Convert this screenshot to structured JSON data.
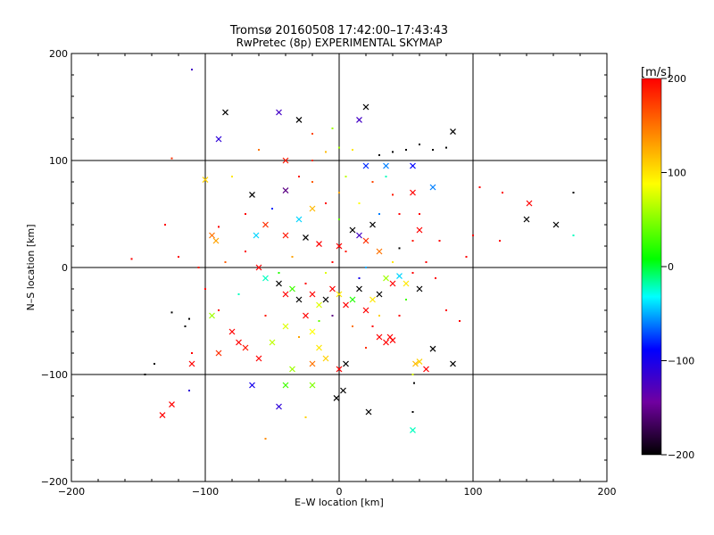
{
  "chart_data": {
    "type": "scatter",
    "title": "Tromsø 20160508 17:42:00–17:43:43",
    "subtitle": "RwPretec (8p) EXPERIMENTAL SKYMAP",
    "xlabel": "E–W location [km]",
    "ylabel": "N–S location [km]",
    "xlim": [
      -200,
      200
    ],
    "ylim": [
      -200,
      200
    ],
    "x_ticks": [
      "−200",
      "−100",
      "0",
      "100",
      "200"
    ],
    "y_ticks": [
      "−200",
      "−100",
      "0",
      "100",
      "200"
    ],
    "x_tick_values": [
      -200,
      -100,
      0,
      100,
      200
    ],
    "y_tick_values": [
      -200,
      -100,
      0,
      100,
      200
    ],
    "grid": "lines at ±100 and 0",
    "colorbar": {
      "label": "[m/s]",
      "range": [
        -200,
        200
      ],
      "tick_values": [
        200,
        100,
        0,
        -100,
        -200
      ],
      "tick_labels": [
        "200",
        "100",
        "0",
        "−100",
        "−200"
      ],
      "colormap": [
        "#000000",
        "#7000a0",
        "#0000ff",
        "#00ffff",
        "#00ff00",
        "#ffff00",
        "#ff8000",
        "#ff0000"
      ]
    },
    "marker_legend": {
      "cross": "x marker",
      "dot": "small dot"
    },
    "points": [
      {
        "x": -110,
        "y": 185,
        "v": -120,
        "m": "dot"
      },
      {
        "x": -45,
        "y": 145,
        "v": -120,
        "m": "cross"
      },
      {
        "x": -30,
        "y": 138,
        "v": -200,
        "m": "cross"
      },
      {
        "x": -85,
        "y": 145,
        "v": -200,
        "m": "cross"
      },
      {
        "x": -90,
        "y": 120,
        "v": -110,
        "m": "cross"
      },
      {
        "x": 20,
        "y": 150,
        "v": -200,
        "m": "cross"
      },
      {
        "x": 15,
        "y": 138,
        "v": -120,
        "m": "cross"
      },
      {
        "x": 85,
        "y": 127,
        "v": -200,
        "m": "cross"
      },
      {
        "x": 60,
        "y": 115,
        "v": -200,
        "m": "dot"
      },
      {
        "x": 70,
        "y": 110,
        "v": -200,
        "m": "dot"
      },
      {
        "x": 50,
        "y": 110,
        "v": -200,
        "m": "dot"
      },
      {
        "x": 40,
        "y": 108,
        "v": -200,
        "m": "dot"
      },
      {
        "x": 30,
        "y": 105,
        "v": -200,
        "m": "dot"
      },
      {
        "x": 80,
        "y": 112,
        "v": -200,
        "m": "dot"
      },
      {
        "x": 10,
        "y": 110,
        "v": 100,
        "m": "dot"
      },
      {
        "x": 0,
        "y": 112,
        "v": 60,
        "m": "dot"
      },
      {
        "x": -10,
        "y": 108,
        "v": 120,
        "m": "dot"
      },
      {
        "x": -20,
        "y": 100,
        "v": 180,
        "m": "dot"
      },
      {
        "x": -40,
        "y": 100,
        "v": 190,
        "m": "cross"
      },
      {
        "x": 20,
        "y": 95,
        "v": -80,
        "m": "cross"
      },
      {
        "x": 35,
        "y": 95,
        "v": -60,
        "m": "cross"
      },
      {
        "x": 55,
        "y": 95,
        "v": -90,
        "m": "cross"
      },
      {
        "x": 70,
        "y": 75,
        "v": -60,
        "m": "cross"
      },
      {
        "x": 55,
        "y": 70,
        "v": 200,
        "m": "cross"
      },
      {
        "x": 40,
        "y": 68,
        "v": 190,
        "m": "dot"
      },
      {
        "x": -65,
        "y": 68,
        "v": -200,
        "m": "cross"
      },
      {
        "x": -125,
        "y": 102,
        "v": 180,
        "m": "dot"
      },
      {
        "x": -100,
        "y": 82,
        "v": 110,
        "m": "cross"
      },
      {
        "x": -40,
        "y": 72,
        "v": -150,
        "m": "cross"
      },
      {
        "x": -20,
        "y": 55,
        "v": 120,
        "m": "cross"
      },
      {
        "x": -30,
        "y": 45,
        "v": -40,
        "m": "cross"
      },
      {
        "x": -55,
        "y": 40,
        "v": 180,
        "m": "cross"
      },
      {
        "x": -90,
        "y": 38,
        "v": 200,
        "m": "dot"
      },
      {
        "x": -95,
        "y": 30,
        "v": 150,
        "m": "cross"
      },
      {
        "x": -92,
        "y": 25,
        "v": 130,
        "m": "cross"
      },
      {
        "x": -62,
        "y": 30,
        "v": -40,
        "m": "cross"
      },
      {
        "x": -40,
        "y": 30,
        "v": 190,
        "m": "cross"
      },
      {
        "x": -25,
        "y": 28,
        "v": -200,
        "m": "cross"
      },
      {
        "x": -15,
        "y": 22,
        "v": 200,
        "m": "cross"
      },
      {
        "x": 0,
        "y": 20,
        "v": 200,
        "m": "cross"
      },
      {
        "x": 10,
        "y": 35,
        "v": -200,
        "m": "cross"
      },
      {
        "x": 15,
        "y": 30,
        "v": -120,
        "m": "cross"
      },
      {
        "x": 20,
        "y": 25,
        "v": 180,
        "m": "cross"
      },
      {
        "x": 25,
        "y": 40,
        "v": -200,
        "m": "cross"
      },
      {
        "x": 30,
        "y": 15,
        "v": 150,
        "m": "cross"
      },
      {
        "x": 45,
        "y": 18,
        "v": -200,
        "m": "dot"
      },
      {
        "x": 55,
        "y": 25,
        "v": 190,
        "m": "dot"
      },
      {
        "x": 60,
        "y": 35,
        "v": 200,
        "m": "cross"
      },
      {
        "x": 75,
        "y": 25,
        "v": 200,
        "m": "dot"
      },
      {
        "x": 100,
        "y": 30,
        "v": 200,
        "m": "dot"
      },
      {
        "x": 120,
        "y": 25,
        "v": 200,
        "m": "dot"
      },
      {
        "x": 140,
        "y": 45,
        "v": -200,
        "m": "cross"
      },
      {
        "x": 142,
        "y": 60,
        "v": 200,
        "m": "cross"
      },
      {
        "x": 162,
        "y": 40,
        "v": -200,
        "m": "cross"
      },
      {
        "x": 175,
        "y": 70,
        "v": -200,
        "m": "dot"
      },
      {
        "x": 175,
        "y": 30,
        "v": -20,
        "m": "dot"
      },
      {
        "x": 122,
        "y": 70,
        "v": 200,
        "m": "dot"
      },
      {
        "x": 105,
        "y": 75,
        "v": 200,
        "m": "dot"
      },
      {
        "x": -155,
        "y": 8,
        "v": 200,
        "m": "dot"
      },
      {
        "x": -120,
        "y": 10,
        "v": 200,
        "m": "dot"
      },
      {
        "x": -105,
        "y": 0,
        "v": 190,
        "m": "dot"
      },
      {
        "x": -60,
        "y": 0,
        "v": 200,
        "m": "cross"
      },
      {
        "x": -55,
        "y": -10,
        "v": -20,
        "m": "cross"
      },
      {
        "x": -45,
        "y": -15,
        "v": -200,
        "m": "cross"
      },
      {
        "x": -40,
        "y": -25,
        "v": 200,
        "m": "cross"
      },
      {
        "x": -35,
        "y": -20,
        "v": 30,
        "m": "cross"
      },
      {
        "x": -30,
        "y": -30,
        "v": -200,
        "m": "cross"
      },
      {
        "x": -20,
        "y": -25,
        "v": 200,
        "m": "cross"
      },
      {
        "x": -15,
        "y": -35,
        "v": 80,
        "m": "cross"
      },
      {
        "x": -10,
        "y": -30,
        "v": -200,
        "m": "cross"
      },
      {
        "x": -5,
        "y": -20,
        "v": 200,
        "m": "cross"
      },
      {
        "x": 0,
        "y": -25,
        "v": 100,
        "m": "cross"
      },
      {
        "x": 5,
        "y": -35,
        "v": 200,
        "m": "cross"
      },
      {
        "x": 10,
        "y": -30,
        "v": 20,
        "m": "cross"
      },
      {
        "x": 15,
        "y": -20,
        "v": -200,
        "m": "cross"
      },
      {
        "x": 20,
        "y": -40,
        "v": 200,
        "m": "cross"
      },
      {
        "x": 25,
        "y": -30,
        "v": 100,
        "m": "cross"
      },
      {
        "x": 30,
        "y": -25,
        "v": -200,
        "m": "cross"
      },
      {
        "x": 35,
        "y": -10,
        "v": 60,
        "m": "cross"
      },
      {
        "x": 40,
        "y": -15,
        "v": 200,
        "m": "cross"
      },
      {
        "x": 45,
        "y": -8,
        "v": -40,
        "m": "cross"
      },
      {
        "x": 50,
        "y": -15,
        "v": 100,
        "m": "cross"
      },
      {
        "x": 55,
        "y": -5,
        "v": 200,
        "m": "dot"
      },
      {
        "x": 60,
        "y": -20,
        "v": -200,
        "m": "cross"
      },
      {
        "x": 72,
        "y": -10,
        "v": 200,
        "m": "dot"
      },
      {
        "x": 80,
        "y": -40,
        "v": 200,
        "m": "dot"
      },
      {
        "x": -100,
        "y": -20,
        "v": 200,
        "m": "dot"
      },
      {
        "x": -90,
        "y": -40,
        "v": 200,
        "m": "dot"
      },
      {
        "x": -95,
        "y": -45,
        "v": 60,
        "m": "cross"
      },
      {
        "x": -80,
        "y": -60,
        "v": 200,
        "m": "cross"
      },
      {
        "x": -75,
        "y": -70,
        "v": 200,
        "m": "cross"
      },
      {
        "x": -70,
        "y": -75,
        "v": 190,
        "m": "cross"
      },
      {
        "x": -90,
        "y": -80,
        "v": 180,
        "m": "cross"
      },
      {
        "x": -110,
        "y": -90,
        "v": 200,
        "m": "cross"
      },
      {
        "x": -60,
        "y": -85,
        "v": 200,
        "m": "cross"
      },
      {
        "x": -50,
        "y": -70,
        "v": 70,
        "m": "cross"
      },
      {
        "x": -40,
        "y": -55,
        "v": 80,
        "m": "cross"
      },
      {
        "x": -25,
        "y": -45,
        "v": 200,
        "m": "cross"
      },
      {
        "x": -20,
        "y": -60,
        "v": 90,
        "m": "cross"
      },
      {
        "x": -15,
        "y": -75,
        "v": 100,
        "m": "cross"
      },
      {
        "x": -10,
        "y": -85,
        "v": 110,
        "m": "cross"
      },
      {
        "x": -20,
        "y": -90,
        "v": 150,
        "m": "cross"
      },
      {
        "x": -35,
        "y": -95,
        "v": 60,
        "m": "cross"
      },
      {
        "x": -40,
        "y": -110,
        "v": 30,
        "m": "cross"
      },
      {
        "x": -20,
        "y": -110,
        "v": 50,
        "m": "cross"
      },
      {
        "x": 0,
        "y": -95,
        "v": 200,
        "m": "cross"
      },
      {
        "x": 5,
        "y": -90,
        "v": -200,
        "m": "cross"
      },
      {
        "x": 30,
        "y": -65,
        "v": 200,
        "m": "cross"
      },
      {
        "x": 38,
        "y": -65,
        "v": 200,
        "m": "cross"
      },
      {
        "x": 40,
        "y": -68,
        "v": 200,
        "m": "cross"
      },
      {
        "x": 35,
        "y": -70,
        "v": 200,
        "m": "cross"
      },
      {
        "x": 57,
        "y": -90,
        "v": 120,
        "m": "cross"
      },
      {
        "x": 60,
        "y": -88,
        "v": 110,
        "m": "cross"
      },
      {
        "x": 65,
        "y": -95,
        "v": 200,
        "m": "cross"
      },
      {
        "x": 70,
        "y": -76,
        "v": -200,
        "m": "cross"
      },
      {
        "x": 85,
        "y": -90,
        "v": -200,
        "m": "cross"
      },
      {
        "x": 90,
        "y": -50,
        "v": 200,
        "m": "dot"
      },
      {
        "x": 55,
        "y": -100,
        "v": 80,
        "m": "dot"
      },
      {
        "x": 56,
        "y": -108,
        "v": -200,
        "m": "dot"
      },
      {
        "x": -145,
        "y": -100,
        "v": -200,
        "m": "dot"
      },
      {
        "x": -125,
        "y": -128,
        "v": 200,
        "m": "cross"
      },
      {
        "x": -132,
        "y": -138,
        "v": 200,
        "m": "cross"
      },
      {
        "x": -112,
        "y": -115,
        "v": -110,
        "m": "dot"
      },
      {
        "x": -138,
        "y": -90,
        "v": -200,
        "m": "dot"
      },
      {
        "x": -112,
        "y": -48,
        "v": -200,
        "m": "dot"
      },
      {
        "x": -115,
        "y": -55,
        "v": -200,
        "m": "dot"
      },
      {
        "x": -125,
        "y": -42,
        "v": -200,
        "m": "dot"
      },
      {
        "x": -65,
        "y": -110,
        "v": -100,
        "m": "cross"
      },
      {
        "x": -45,
        "y": -130,
        "v": -110,
        "m": "cross"
      },
      {
        "x": -25,
        "y": -140,
        "v": 110,
        "m": "dot"
      },
      {
        "x": -55,
        "y": -160,
        "v": 140,
        "m": "dot"
      },
      {
        "x": -2,
        "y": -122,
        "v": -200,
        "m": "cross"
      },
      {
        "x": 3,
        "y": -115,
        "v": -200,
        "m": "cross"
      },
      {
        "x": 22,
        "y": -135,
        "v": -200,
        "m": "cross"
      },
      {
        "x": 55,
        "y": -152,
        "v": -20,
        "m": "cross"
      },
      {
        "x": 55,
        "y": -135,
        "v": -200,
        "m": "dot"
      },
      {
        "x": -110,
        "y": -80,
        "v": 200,
        "m": "dot"
      },
      {
        "x": -20,
        "y": 80,
        "v": 160,
        "m": "dot"
      },
      {
        "x": 0,
        "y": 70,
        "v": 130,
        "m": "dot"
      },
      {
        "x": 15,
        "y": 60,
        "v": 90,
        "m": "dot"
      },
      {
        "x": -10,
        "y": 60,
        "v": 200,
        "m": "dot"
      },
      {
        "x": 5,
        "y": 85,
        "v": 70,
        "m": "dot"
      },
      {
        "x": -30,
        "y": 85,
        "v": 190,
        "m": "dot"
      },
      {
        "x": 25,
        "y": 80,
        "v": 170,
        "m": "dot"
      },
      {
        "x": 45,
        "y": 50,
        "v": 200,
        "m": "dot"
      },
      {
        "x": -50,
        "y": 55,
        "v": -80,
        "m": "dot"
      },
      {
        "x": -70,
        "y": 50,
        "v": 200,
        "m": "dot"
      },
      {
        "x": 0,
        "y": 45,
        "v": 40,
        "m": "dot"
      },
      {
        "x": 30,
        "y": 50,
        "v": -60,
        "m": "dot"
      },
      {
        "x": 60,
        "y": 50,
        "v": 200,
        "m": "dot"
      },
      {
        "x": -35,
        "y": 10,
        "v": 130,
        "m": "dot"
      },
      {
        "x": -5,
        "y": 5,
        "v": 200,
        "m": "dot"
      },
      {
        "x": 20,
        "y": 0,
        "v": -50,
        "m": "dot"
      },
      {
        "x": 40,
        "y": 5,
        "v": 100,
        "m": "dot"
      },
      {
        "x": 65,
        "y": 5,
        "v": 200,
        "m": "dot"
      },
      {
        "x": -75,
        "y": -25,
        "v": -20,
        "m": "dot"
      },
      {
        "x": -15,
        "y": -50,
        "v": 40,
        "m": "dot"
      },
      {
        "x": 10,
        "y": -55,
        "v": 150,
        "m": "dot"
      },
      {
        "x": 45,
        "y": -45,
        "v": 200,
        "m": "dot"
      },
      {
        "x": -55,
        "y": -45,
        "v": 190,
        "m": "dot"
      },
      {
        "x": -30,
        "y": -65,
        "v": 130,
        "m": "dot"
      },
      {
        "x": 20,
        "y": -75,
        "v": 180,
        "m": "dot"
      },
      {
        "x": 95,
        "y": 10,
        "v": 200,
        "m": "dot"
      },
      {
        "x": -130,
        "y": 40,
        "v": 200,
        "m": "dot"
      },
      {
        "x": -80,
        "y": 85,
        "v": 100,
        "m": "dot"
      },
      {
        "x": -60,
        "y": 110,
        "v": 150,
        "m": "dot"
      },
      {
        "x": -5,
        "y": 130,
        "v": 60,
        "m": "dot"
      },
      {
        "x": -20,
        "y": 125,
        "v": 170,
        "m": "dot"
      },
      {
        "x": 35,
        "y": 85,
        "v": -20,
        "m": "dot"
      },
      {
        "x": -45,
        "y": -5,
        "v": 20,
        "m": "dot"
      },
      {
        "x": 15,
        "y": -10,
        "v": -100,
        "m": "dot"
      },
      {
        "x": -10,
        "y": -5,
        "v": 80,
        "m": "dot"
      },
      {
        "x": 5,
        "y": 15,
        "v": 190,
        "m": "dot"
      },
      {
        "x": -25,
        "y": -15,
        "v": 200,
        "m": "dot"
      },
      {
        "x": 30,
        "y": -45,
        "v": 110,
        "m": "dot"
      },
      {
        "x": -5,
        "y": -45,
        "v": -150,
        "m": "dot"
      },
      {
        "x": -70,
        "y": 15,
        "v": 200,
        "m": "dot"
      },
      {
        "x": -85,
        "y": 5,
        "v": 160,
        "m": "dot"
      },
      {
        "x": 25,
        "y": -55,
        "v": 200,
        "m": "dot"
      },
      {
        "x": 50,
        "y": -30,
        "v": 30,
        "m": "dot"
      }
    ]
  }
}
